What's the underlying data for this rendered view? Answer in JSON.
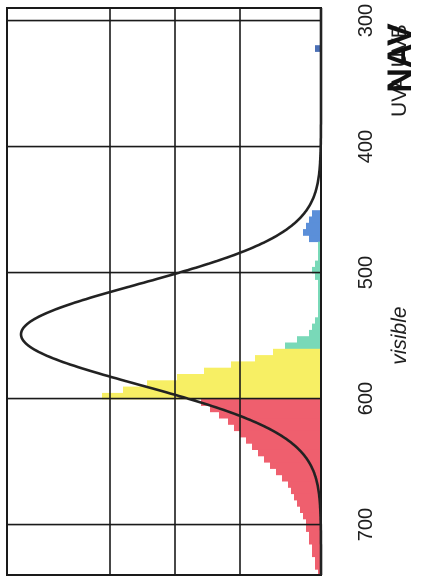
{
  "chart_data": {
    "type": "bar",
    "title": "NAV",
    "orientation": "rotated-90-clockwise",
    "xlabel": "",
    "ylabel": "",
    "wavelength_range": [
      290,
      740
    ],
    "x_ticks": [
      "300",
      "400",
      "500",
      "600",
      "700"
    ],
    "x_tick_values": [
      300,
      400,
      500,
      600,
      700
    ],
    "region_labels": [
      {
        "text": "UVB",
        "at": 320,
        "style": "normal"
      },
      {
        "text": "UVA",
        "at": 360,
        "style": "normal"
      },
      {
        "text": "visible",
        "at": 550,
        "style": "italic"
      }
    ],
    "grid": true,
    "colors": {
      "uvb": "#4a6fb5",
      "blue": "#5b8fd9",
      "green": "#79d9b8",
      "yellow": "#f7ef64",
      "red": "#ef5f6e",
      "curve": "#222222",
      "grid": "#1a1a1a"
    },
    "curve": {
      "peak_wavelength": 549,
      "peak_sensitivity": 1.0,
      "sigma": 40
    },
    "value_max": 1.0,
    "bins": [
      {
        "x": 322,
        "value": 0.02,
        "band": "uvb"
      },
      {
        "x": 453,
        "value": 0.03,
        "band": "blue"
      },
      {
        "x": 458,
        "value": 0.04,
        "band": "blue"
      },
      {
        "x": 463,
        "value": 0.05,
        "band": "blue"
      },
      {
        "x": 468,
        "value": 0.06,
        "band": "blue"
      },
      {
        "x": 473,
        "value": 0.04,
        "band": "blue"
      },
      {
        "x": 478,
        "value": 0.01,
        "band": "green"
      },
      {
        "x": 483,
        "value": 0.01,
        "band": "green"
      },
      {
        "x": 488,
        "value": 0.01,
        "band": "green"
      },
      {
        "x": 493,
        "value": 0.02,
        "band": "green"
      },
      {
        "x": 498,
        "value": 0.03,
        "band": "green"
      },
      {
        "x": 503,
        "value": 0.02,
        "band": "green"
      },
      {
        "x": 508,
        "value": 0.01,
        "band": "green"
      },
      {
        "x": 513,
        "value": 0.01,
        "band": "green"
      },
      {
        "x": 518,
        "value": 0.01,
        "band": "green"
      },
      {
        "x": 523,
        "value": 0.01,
        "band": "green"
      },
      {
        "x": 528,
        "value": 0.01,
        "band": "green"
      },
      {
        "x": 533,
        "value": 0.01,
        "band": "green"
      },
      {
        "x": 538,
        "value": 0.02,
        "band": "green"
      },
      {
        "x": 543,
        "value": 0.03,
        "band": "green"
      },
      {
        "x": 548,
        "value": 0.04,
        "band": "green"
      },
      {
        "x": 553,
        "value": 0.08,
        "band": "green"
      },
      {
        "x": 558,
        "value": 0.12,
        "band": "green"
      },
      {
        "x": 563,
        "value": 0.16,
        "band": "yellow"
      },
      {
        "x": 568,
        "value": 0.22,
        "band": "yellow"
      },
      {
        "x": 573,
        "value": 0.3,
        "band": "yellow"
      },
      {
        "x": 578,
        "value": 0.39,
        "band": "yellow"
      },
      {
        "x": 583,
        "value": 0.48,
        "band": "yellow"
      },
      {
        "x": 588,
        "value": 0.58,
        "band": "yellow"
      },
      {
        "x": 593,
        "value": 0.66,
        "band": "yellow"
      },
      {
        "x": 598,
        "value": 0.73,
        "band": "yellow"
      },
      {
        "x": 603,
        "value": 0.4,
        "band": "red"
      },
      {
        "x": 608,
        "value": 0.37,
        "band": "red"
      },
      {
        "x": 613,
        "value": 0.34,
        "band": "red"
      },
      {
        "x": 618,
        "value": 0.31,
        "band": "red"
      },
      {
        "x": 623,
        "value": 0.29,
        "band": "red"
      },
      {
        "x": 628,
        "value": 0.27,
        "band": "red"
      },
      {
        "x": 633,
        "value": 0.25,
        "band": "red"
      },
      {
        "x": 638,
        "value": 0.23,
        "band": "red"
      },
      {
        "x": 643,
        "value": 0.21,
        "band": "red"
      },
      {
        "x": 648,
        "value": 0.19,
        "band": "red"
      },
      {
        "x": 653,
        "value": 0.17,
        "band": "red"
      },
      {
        "x": 658,
        "value": 0.15,
        "band": "red"
      },
      {
        "x": 663,
        "value": 0.13,
        "band": "red"
      },
      {
        "x": 668,
        "value": 0.11,
        "band": "red"
      },
      {
        "x": 673,
        "value": 0.1,
        "band": "red"
      },
      {
        "x": 678,
        "value": 0.09,
        "band": "red"
      },
      {
        "x": 683,
        "value": 0.08,
        "band": "red"
      },
      {
        "x": 688,
        "value": 0.07,
        "band": "red"
      },
      {
        "x": 693,
        "value": 0.06,
        "band": "red"
      },
      {
        "x": 698,
        "value": 0.05,
        "band": "red"
      },
      {
        "x": 703,
        "value": 0.05,
        "band": "red"
      },
      {
        "x": 708,
        "value": 0.04,
        "band": "red"
      },
      {
        "x": 713,
        "value": 0.04,
        "band": "red"
      },
      {
        "x": 718,
        "value": 0.03,
        "band": "red"
      },
      {
        "x": 723,
        "value": 0.03,
        "band": "red"
      },
      {
        "x": 728,
        "value": 0.02,
        "band": "red"
      },
      {
        "x": 733,
        "value": 0.02,
        "band": "red"
      },
      {
        "x": 738,
        "value": 0.01,
        "band": "red"
      }
    ]
  }
}
